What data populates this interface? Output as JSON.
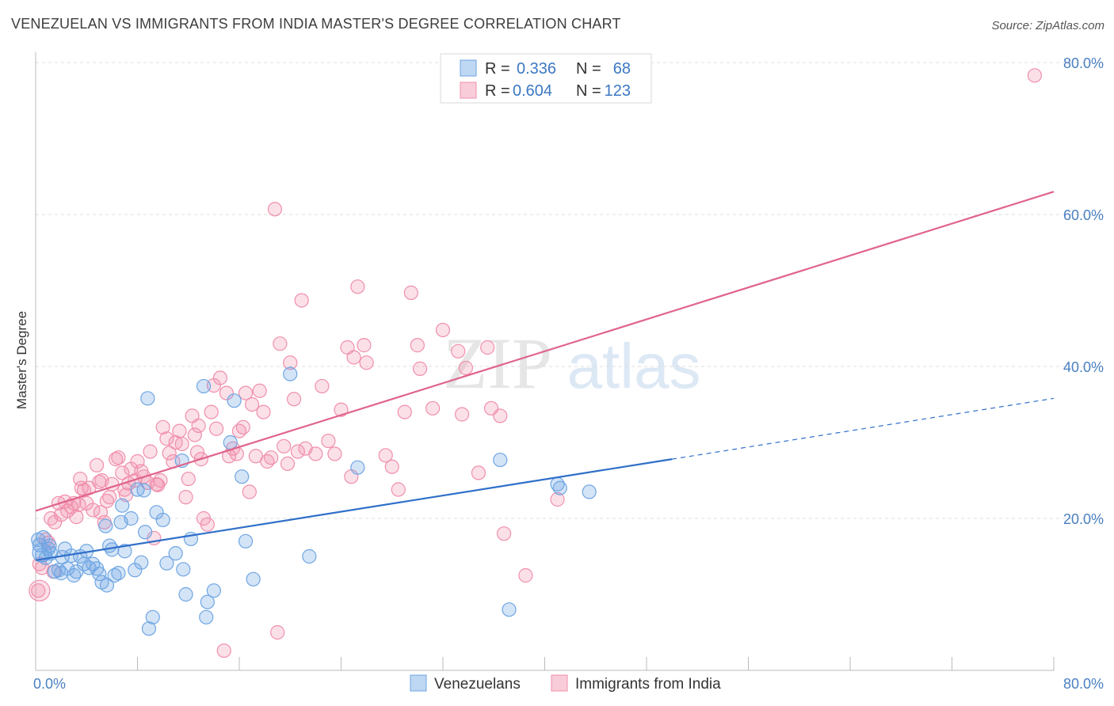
{
  "title": "VENEZUELAN VS IMMIGRANTS FROM INDIA MASTER'S DEGREE CORRELATION CHART",
  "source": "Source: ZipAtlas.com",
  "watermark": {
    "zip": "ZIP",
    "atlas": "atlas"
  },
  "colors": {
    "blue": "#6fa6e3",
    "blue_fill": "rgba(111,166,227,0.30)",
    "blue_line": "#2f6fc9",
    "pink": "#f08fab",
    "pink_fill": "rgba(240,143,171,0.28)",
    "pink_line": "#e0648d"
  },
  "stats": {
    "blue": {
      "r_label": "R =",
      "r_value": "0.336",
      "n_label": "N =",
      "n_value": "68"
    },
    "pink": {
      "r_label": "R =",
      "r_value": "0.604",
      "n_label": "N =",
      "n_value": "123"
    }
  },
  "chart_data": {
    "type": "scatter",
    "title": "VENEZUELAN VS IMMIGRANTS FROM INDIA MASTER'S DEGREE CORRELATION CHART",
    "xlabel": "",
    "ylabel": "Master's Degree",
    "xlim": [
      0,
      80
    ],
    "ylim": [
      0,
      80
    ],
    "x_tick_labels": [
      "0.0%",
      "80.0%"
    ],
    "y_tick_labels": [
      "20.0%",
      "40.0%",
      "60.0%",
      "80.0%"
    ],
    "y_ticks": [
      20,
      40,
      60,
      80
    ],
    "x_minor_ticks": [
      0,
      8,
      16,
      24,
      32,
      40,
      48,
      56,
      64,
      72,
      80
    ],
    "grid": true,
    "legend_position": "bottom-center",
    "series": [
      {
        "name": "Venezuelans",
        "color": "#6fa6e3",
        "trend": {
          "x0": 0,
          "y0": 14.5,
          "x1": 50,
          "y1": 27.8,
          "dash_x1": 80,
          "dash_y1": 35.8
        },
        "points": [
          [
            0.3,
            16.5
          ],
          [
            0.5,
            15.2
          ],
          [
            0.6,
            17.5
          ],
          [
            0.8,
            14.8
          ],
          [
            1.0,
            16.0
          ],
          [
            1.2,
            15.4
          ],
          [
            1.5,
            13.0
          ],
          [
            1.8,
            13.2
          ],
          [
            2.0,
            12.8
          ],
          [
            2.3,
            16.0
          ],
          [
            2.5,
            13.4
          ],
          [
            2.8,
            15.1
          ],
          [
            3.0,
            12.5
          ],
          [
            3.2,
            13.0
          ],
          [
            3.5,
            15.0
          ],
          [
            3.8,
            14.0
          ],
          [
            4.0,
            15.7
          ],
          [
            4.2,
            13.5
          ],
          [
            4.5,
            14.0
          ],
          [
            4.8,
            13.4
          ],
          [
            5.0,
            12.7
          ],
          [
            5.2,
            11.6
          ],
          [
            5.5,
            19.0
          ],
          [
            5.6,
            11.2
          ],
          [
            5.8,
            16.4
          ],
          [
            6.0,
            15.9
          ],
          [
            6.2,
            12.5
          ],
          [
            6.5,
            12.8
          ],
          [
            6.7,
            19.5
          ],
          [
            6.8,
            21.7
          ],
          [
            7.0,
            15.7
          ],
          [
            7.5,
            20.0
          ],
          [
            7.8,
            13.2
          ],
          [
            8.0,
            23.8
          ],
          [
            8.3,
            14.2
          ],
          [
            8.5,
            23.7
          ],
          [
            8.6,
            18.2
          ],
          [
            8.8,
            35.8
          ],
          [
            8.9,
            5.5
          ],
          [
            9.2,
            7.0
          ],
          [
            9.5,
            20.8
          ],
          [
            10.0,
            19.8
          ],
          [
            10.3,
            14.1
          ],
          [
            11.0,
            15.4
          ],
          [
            11.5,
            27.6
          ],
          [
            11.6,
            13.3
          ],
          [
            11.8,
            10.0
          ],
          [
            12.2,
            17.3
          ],
          [
            13.2,
            37.4
          ],
          [
            13.4,
            7.0
          ],
          [
            13.5,
            9.0
          ],
          [
            14.0,
            10.5
          ],
          [
            15.3,
            30.0
          ],
          [
            15.6,
            35.5
          ],
          [
            16.2,
            25.5
          ],
          [
            16.5,
            17.0
          ],
          [
            17.1,
            12.0
          ],
          [
            20.0,
            39.0
          ],
          [
            21.5,
            15.0
          ],
          [
            25.3,
            26.7
          ],
          [
            36.5,
            27.7
          ],
          [
            37.2,
            8.0
          ],
          [
            41.0,
            24.5
          ],
          [
            41.2,
            24.0
          ],
          [
            43.5,
            23.5
          ],
          [
            0.2,
            17.2
          ],
          [
            1.1,
            16.4
          ],
          [
            2.1,
            14.9
          ]
        ]
      },
      {
        "name": "Immigrants from India",
        "color": "#f08fab",
        "trend": {
          "x0": 0,
          "y0": 21.0,
          "x1": 80,
          "y1": 63.0
        },
        "points": [
          [
            0.2,
            10.5
          ],
          [
            0.5,
            13.5
          ],
          [
            0.8,
            17.2
          ],
          [
            1.0,
            16.8
          ],
          [
            1.2,
            20.0
          ],
          [
            1.5,
            19.5
          ],
          [
            1.8,
            22.0
          ],
          [
            2.0,
            20.5
          ],
          [
            2.3,
            22.2
          ],
          [
            2.5,
            21.0
          ],
          [
            2.8,
            21.5
          ],
          [
            3.0,
            22.0
          ],
          [
            3.2,
            20.2
          ],
          [
            3.5,
            25.2
          ],
          [
            3.6,
            24.0
          ],
          [
            3.8,
            23.7
          ],
          [
            4.0,
            22.0
          ],
          [
            4.2,
            24.0
          ],
          [
            4.5,
            21.1
          ],
          [
            4.8,
            27.0
          ],
          [
            5.0,
            24.8
          ],
          [
            5.2,
            25.0
          ],
          [
            5.4,
            19.5
          ],
          [
            5.6,
            22.3
          ],
          [
            5.8,
            22.8
          ],
          [
            6.0,
            24.5
          ],
          [
            6.3,
            27.8
          ],
          [
            6.5,
            28.0
          ],
          [
            6.8,
            26.0
          ],
          [
            7.0,
            23.8
          ],
          [
            7.3,
            24.6
          ],
          [
            7.5,
            26.5
          ],
          [
            7.8,
            25.0
          ],
          [
            8.0,
            27.5
          ],
          [
            8.3,
            26.2
          ],
          [
            8.5,
            25.5
          ],
          [
            8.8,
            24.7
          ],
          [
            9.0,
            28.8
          ],
          [
            9.3,
            17.4
          ],
          [
            9.5,
            24.5
          ],
          [
            9.8,
            25.0
          ],
          [
            10.0,
            32.0
          ],
          [
            10.3,
            30.5
          ],
          [
            10.5,
            28.6
          ],
          [
            10.8,
            27.5
          ],
          [
            11.0,
            30.0
          ],
          [
            11.3,
            31.5
          ],
          [
            11.5,
            29.8
          ],
          [
            11.8,
            22.8
          ],
          [
            12.0,
            25.2
          ],
          [
            12.3,
            33.5
          ],
          [
            12.5,
            31.0
          ],
          [
            12.8,
            32.2
          ],
          [
            13.0,
            27.8
          ],
          [
            13.2,
            20.0
          ],
          [
            13.5,
            19.2
          ],
          [
            13.8,
            34.0
          ],
          [
            14.0,
            37.5
          ],
          [
            14.2,
            31.8
          ],
          [
            14.5,
            38.5
          ],
          [
            14.8,
            2.6
          ],
          [
            15.0,
            36.5
          ],
          [
            15.2,
            28.2
          ],
          [
            15.5,
            29.2
          ],
          [
            15.8,
            28.5
          ],
          [
            16.0,
            31.5
          ],
          [
            16.3,
            32.0
          ],
          [
            16.5,
            36.5
          ],
          [
            16.8,
            23.5
          ],
          [
            17.0,
            35.0
          ],
          [
            17.3,
            28.2
          ],
          [
            17.6,
            36.8
          ],
          [
            17.9,
            34.0
          ],
          [
            18.2,
            27.5
          ],
          [
            18.5,
            28.0
          ],
          [
            18.8,
            60.7
          ],
          [
            19.0,
            5.0
          ],
          [
            19.2,
            43.0
          ],
          [
            19.5,
            29.5
          ],
          [
            19.8,
            27.2
          ],
          [
            20.0,
            40.5
          ],
          [
            20.3,
            35.7
          ],
          [
            20.6,
            28.8
          ],
          [
            20.9,
            48.7
          ],
          [
            21.2,
            29.2
          ],
          [
            22.0,
            28.5
          ],
          [
            22.5,
            37.4
          ],
          [
            23.0,
            30.2
          ],
          [
            23.5,
            28.5
          ],
          [
            24.0,
            34.3
          ],
          [
            24.5,
            42.5
          ],
          [
            24.8,
            25.5
          ],
          [
            25.0,
            41.2
          ],
          [
            25.3,
            50.5
          ],
          [
            25.8,
            42.8
          ],
          [
            26.0,
            40.5
          ],
          [
            27.5,
            28.3
          ],
          [
            28.0,
            26.8
          ],
          [
            28.5,
            23.8
          ],
          [
            29.0,
            34.0
          ],
          [
            29.5,
            49.7
          ],
          [
            30.0,
            42.8
          ],
          [
            30.2,
            39.7
          ],
          [
            31.2,
            34.5
          ],
          [
            32.0,
            44.8
          ],
          [
            33.2,
            42.0
          ],
          [
            33.5,
            33.7
          ],
          [
            33.8,
            39.8
          ],
          [
            34.8,
            26.0
          ],
          [
            35.5,
            42.5
          ],
          [
            35.8,
            34.5
          ],
          [
            36.5,
            33.5
          ],
          [
            36.8,
            18.0
          ],
          [
            38.5,
            12.5
          ],
          [
            41.0,
            22.5
          ],
          [
            78.5,
            78.3
          ],
          [
            0.3,
            14.0
          ],
          [
            1.4,
            13.0
          ],
          [
            3.4,
            21.8
          ],
          [
            5.1,
            20.8
          ],
          [
            7.1,
            23.1
          ],
          [
            9.6,
            24.4
          ],
          [
            12.7,
            28.7
          ]
        ]
      }
    ]
  }
}
